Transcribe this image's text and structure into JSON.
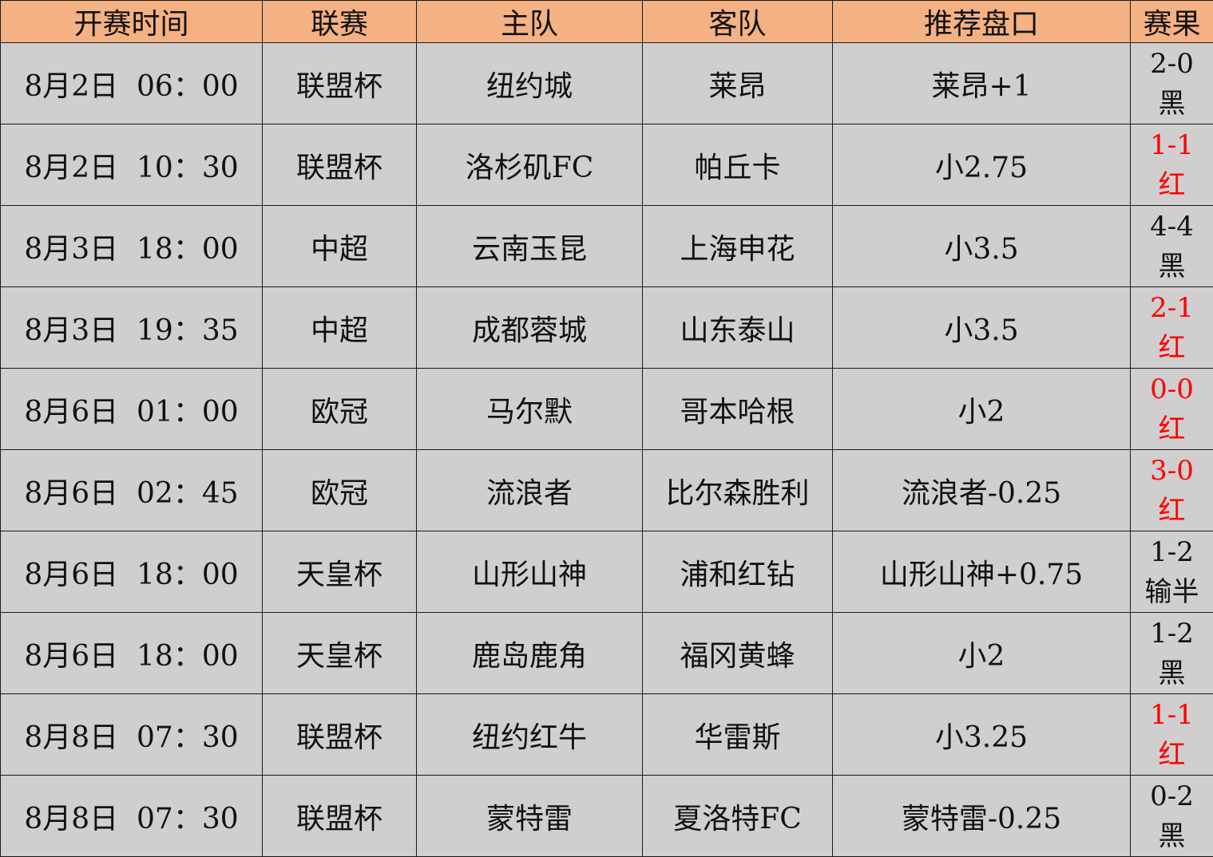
{
  "table": {
    "headers": [
      "开赛时间",
      "联赛",
      "主队",
      "客队",
      "推荐盘口",
      "赛果"
    ],
    "rows": [
      {
        "time": "8月2日  06：00",
        "league": "联盟杯",
        "home": "纽约城",
        "away": "莱昂",
        "pick": "莱昂+1",
        "score": "2-0",
        "outcome": "黑",
        "win": false
      },
      {
        "time": "8月2日  10：30",
        "league": "联盟杯",
        "home": "洛杉矶FC",
        "away": "帕丘卡",
        "pick": "小2.75",
        "score": "1-1",
        "outcome": "红",
        "win": true
      },
      {
        "time": "8月3日  18：00",
        "league": "中超",
        "home": "云南玉昆",
        "away": "上海申花",
        "pick": "小3.5",
        "score": "4-4",
        "outcome": "黑",
        "win": false
      },
      {
        "time": "8月3日  19：35",
        "league": "中超",
        "home": "成都蓉城",
        "away": "山东泰山",
        "pick": "小3.5",
        "score": "2-1",
        "outcome": "红",
        "win": true
      },
      {
        "time": "8月6日  01：00",
        "league": "欧冠",
        "home": "马尔默",
        "away": "哥本哈根",
        "pick": "小2",
        "score": "0-0",
        "outcome": "红",
        "win": true
      },
      {
        "time": "8月6日  02：45",
        "league": "欧冠",
        "home": "流浪者",
        "away": "比尔森胜利",
        "pick": "流浪者-0.25",
        "score": "3-0",
        "outcome": "红",
        "win": true
      },
      {
        "time": "8月6日  18：00",
        "league": "天皇杯",
        "home": "山形山神",
        "away": "浦和红钻",
        "pick": "山形山神+0.75",
        "score": "1-2",
        "outcome": "输半",
        "win": false
      },
      {
        "time": "8月6日  18：00",
        "league": "天皇杯",
        "home": "鹿岛鹿角",
        "away": "福冈黄蜂",
        "pick": "小2",
        "score": "1-2",
        "outcome": "黑",
        "win": false
      },
      {
        "time": "8月8日  07：30",
        "league": "联盟杯",
        "home": "纽约红牛",
        "away": "华雷斯",
        "pick": "小3.25",
        "score": "1-1",
        "outcome": "红",
        "win": true
      },
      {
        "time": "8月8日  07：30",
        "league": "联盟杯",
        "home": "蒙特雷",
        "away": "夏洛特FC",
        "pick": "蒙特雷-0.25",
        "score": "0-2",
        "outcome": "黑",
        "win": false
      }
    ]
  },
  "colors": {
    "header_bg": "#F4B183",
    "row_bg": "#D0CECE",
    "win_text": "#FF0000",
    "text": "#111111"
  }
}
